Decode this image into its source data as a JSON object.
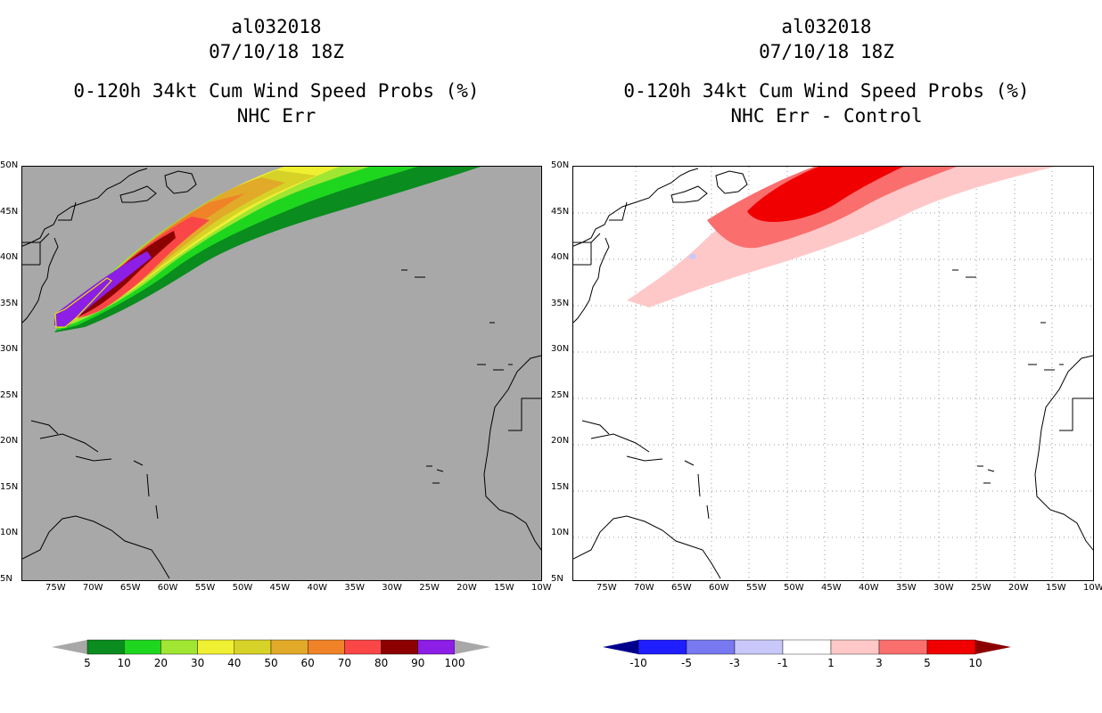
{
  "left": {
    "storm_id": "al032018",
    "datetime": "07/10/18 18Z",
    "product": "0-120h 34kt Cum Wind Speed Probs (%)",
    "subtitle": "NHC Err"
  },
  "right": {
    "storm_id": "al032018",
    "datetime": "07/10/18 18Z",
    "product": "0-120h 34kt Cum Wind Speed Probs (%)",
    "subtitle": "NHC Err - Control"
  },
  "axes": {
    "lon_labels": [
      "75W",
      "70W",
      "65W",
      "60W",
      "55W",
      "50W",
      "45W",
      "40W",
      "35W",
      "30W",
      "25W",
      "20W",
      "15W",
      "10W"
    ],
    "lat_labels": [
      "50N",
      "45N",
      "40N",
      "35N",
      "30N",
      "25N",
      "20N",
      "15N",
      "10N",
      "5N"
    ]
  },
  "left_colorbar": {
    "labels": [
      "5",
      "10",
      "20",
      "30",
      "40",
      "50",
      "60",
      "70",
      "80",
      "90",
      "100"
    ],
    "colors": [
      "#a8a8a8",
      "#0a8c1e",
      "#1fd61f",
      "#a0e632",
      "#f0f032",
      "#d7d228",
      "#e1aa28",
      "#f08228",
      "#fa4646",
      "#8c0000",
      "#8c1ee6",
      "#a8a8a8"
    ]
  },
  "right_colorbar": {
    "labels": [
      "-10",
      "-5",
      "-3",
      "-1",
      "1",
      "3",
      "5",
      "10"
    ],
    "colors": [
      "#00008c",
      "#1e1eff",
      "#7878f0",
      "#c8c8fa",
      "#ffffff",
      "#ffc8c8",
      "#fa6e6e",
      "#f00000",
      "#8c0000"
    ]
  }
}
